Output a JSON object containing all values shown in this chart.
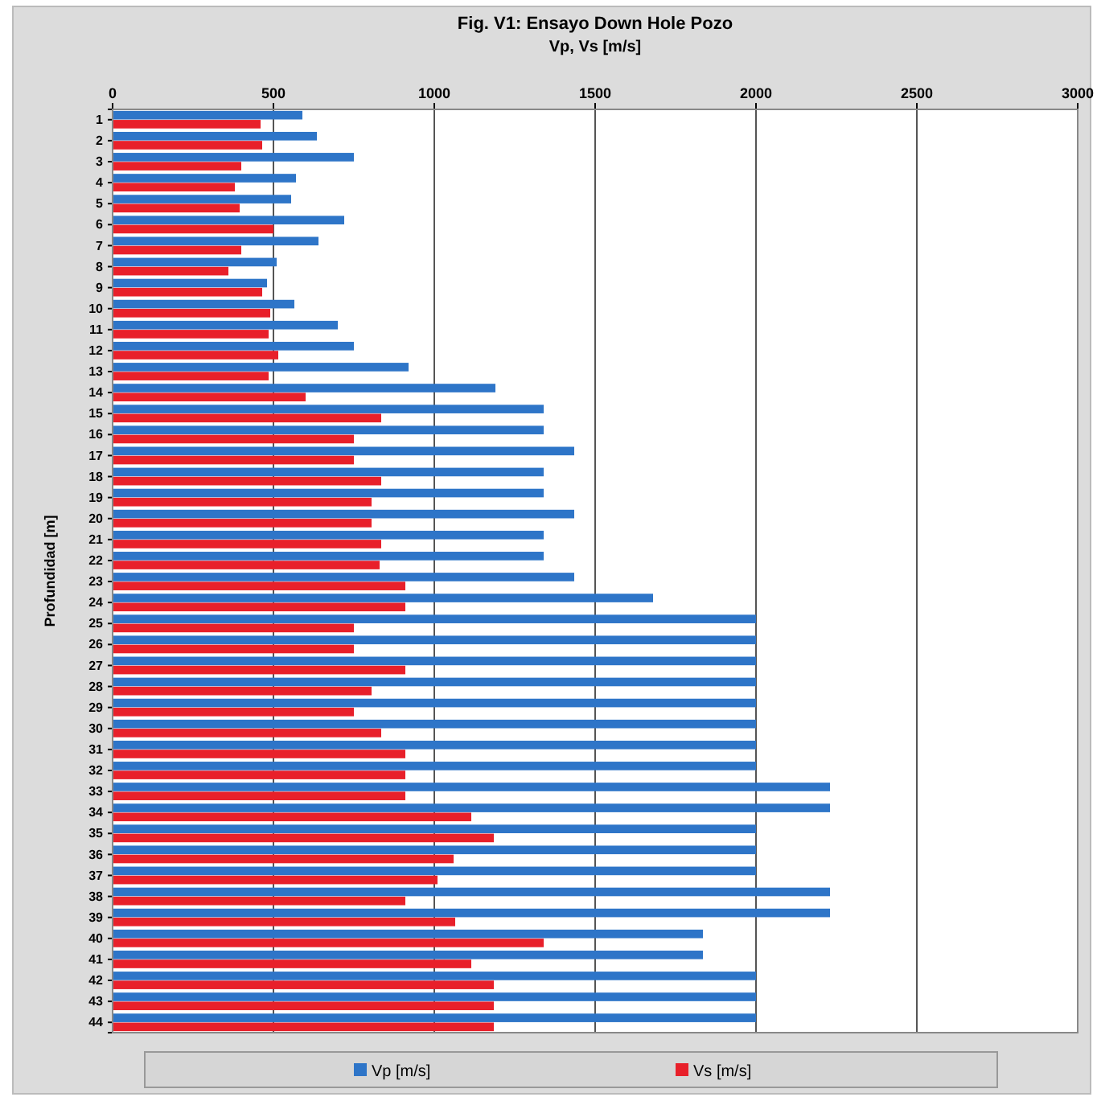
{
  "chart_data": {
    "type": "bar",
    "orientation": "horizontal",
    "title": "Fig. V1: Ensayo Down Hole Pozo",
    "xlabel": "Vp, Vs [m/s]",
    "ylabel": "Profundidad [m]",
    "categories": [
      "1",
      "2",
      "3",
      "4",
      "5",
      "6",
      "7",
      "8",
      "9",
      "10",
      "11",
      "12",
      "13",
      "14",
      "15",
      "16",
      "17",
      "18",
      "19",
      "20",
      "21",
      "22",
      "23",
      "24",
      "25",
      "26",
      "27",
      "28",
      "29",
      "30",
      "31",
      "32",
      "33",
      "34",
      "35",
      "36",
      "37",
      "38",
      "39",
      "40",
      "41",
      "42",
      "43",
      "44"
    ],
    "series": [
      {
        "name": "Vp [m/s]",
        "color": "#2e75c8",
        "values": [
          590,
          635,
          750,
          570,
          555,
          720,
          640,
          510,
          480,
          565,
          700,
          750,
          920,
          1190,
          1340,
          1340,
          1435,
          1340,
          1340,
          1435,
          1340,
          1340,
          1435,
          1680,
          2000,
          2000,
          2000,
          2000,
          2000,
          2000,
          2000,
          2000,
          2230,
          2230,
          2000,
          2000,
          2000,
          2230,
          2230,
          1835,
          1835,
          2000,
          2000,
          2000
        ]
      },
      {
        "name": "Vs [m/s]",
        "color": "#e8202a",
        "values": [
          460,
          465,
          400,
          380,
          395,
          500,
          400,
          360,
          465,
          490,
          485,
          515,
          485,
          600,
          835,
          750,
          750,
          835,
          805,
          805,
          835,
          830,
          910,
          910,
          750,
          750,
          910,
          805,
          750,
          835,
          910,
          910,
          910,
          1115,
          1185,
          1060,
          1010,
          910,
          1065,
          1340,
          1115,
          1185,
          1185,
          1185
        ]
      }
    ],
    "xlim": [
      0,
      3000
    ],
    "xticks": [
      0,
      500,
      1000,
      1500,
      2000,
      2500,
      3000
    ],
    "grid": "x",
    "legend": "bottom"
  }
}
